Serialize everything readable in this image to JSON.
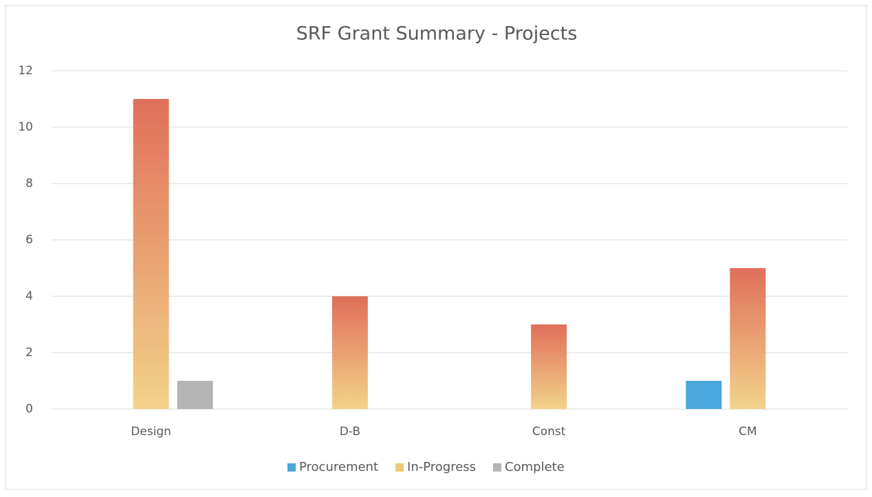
{
  "chart_data": {
    "type": "bar",
    "title": "SRF Grant Summary - Projects",
    "categories": [
      "Design",
      "D-B",
      "Const",
      "CM"
    ],
    "series": [
      {
        "name": "Procurement",
        "color": "#4aa6dc",
        "values": [
          0,
          0,
          0,
          1
        ]
      },
      {
        "name": "In-Progress",
        "color": "#f0c878",
        "gradient": [
          "#e06f5a",
          "#f2d38a"
        ],
        "values": [
          11,
          4,
          3,
          5
        ]
      },
      {
        "name": "Complete",
        "color": "#b4b4b4",
        "values": [
          1,
          0,
          0,
          0
        ]
      }
    ],
    "ylim": [
      0,
      12
    ],
    "yticks": [
      0,
      2,
      4,
      6,
      8,
      10,
      12
    ],
    "grid": true,
    "legend": "bottom"
  }
}
